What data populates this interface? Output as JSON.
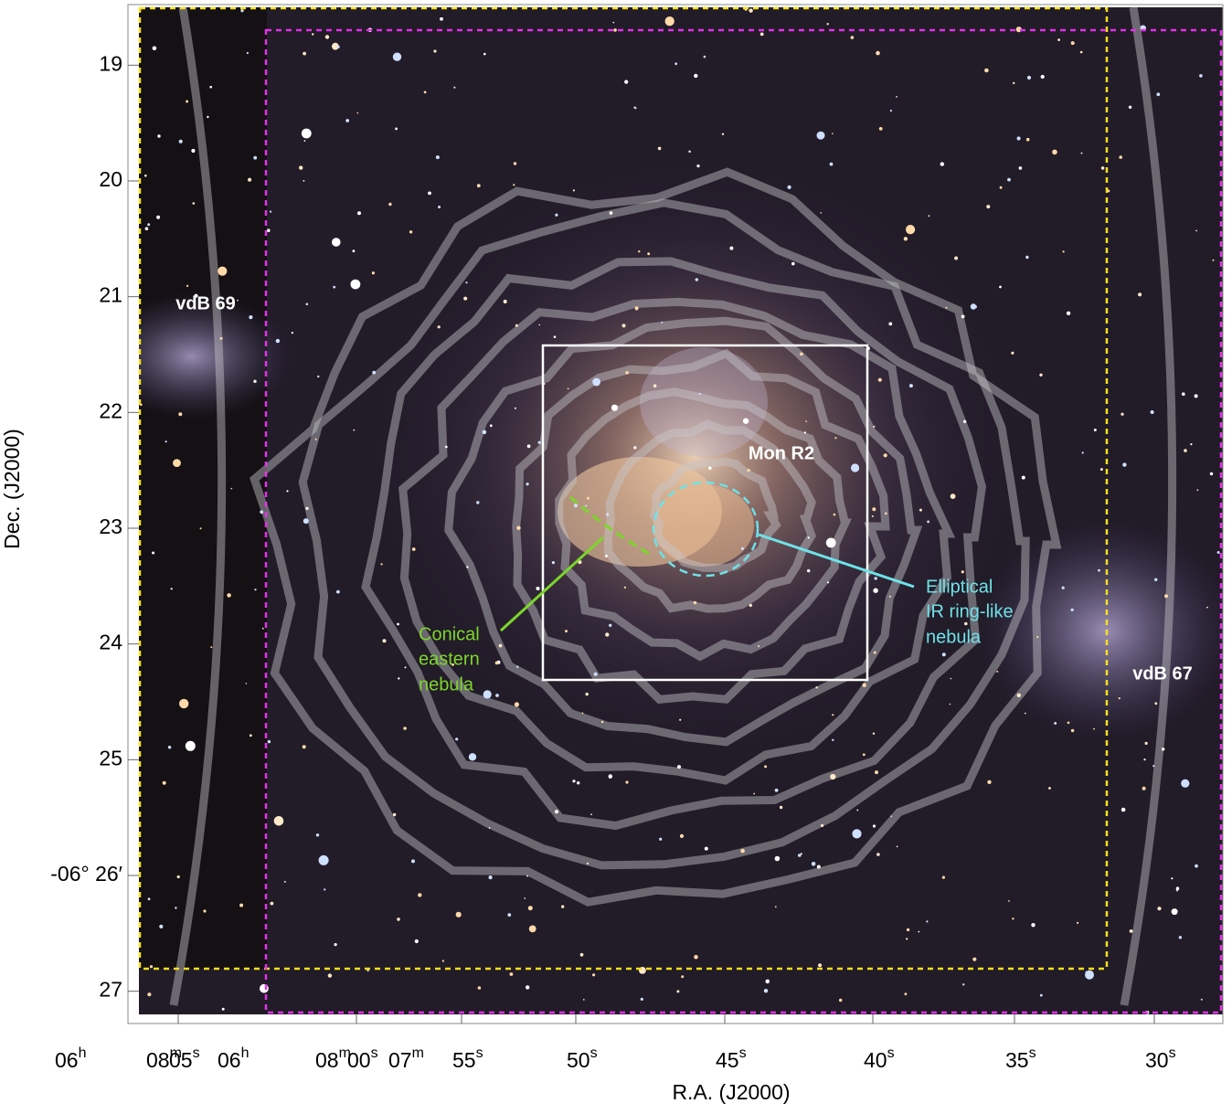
{
  "x_axis": {
    "title": "R.A. (J2000)",
    "ticks": [
      [
        {
          "text": "06",
          "sup": "h"
        },
        {
          "text": "08",
          "sup": "m"
        },
        {
          "text": "05",
          "sup": "s"
        }
      ],
      [
        {
          "text": "06",
          "sup": "h"
        },
        {
          "text": "08",
          "sup": "m"
        },
        {
          "text": "00",
          "sup": "s"
        }
      ],
      [
        {
          "text": "07",
          "sup": "m"
        },
        {
          "text": "55",
          "sup": "s"
        }
      ],
      [
        {
          "text": "50",
          "sup": "s"
        }
      ],
      [
        {
          "text": "45",
          "sup": "s"
        }
      ],
      [
        {
          "text": "40",
          "sup": "s"
        }
      ],
      [
        {
          "text": "35",
          "sup": "s"
        }
      ],
      [
        {
          "text": "30",
          "sup": "s"
        }
      ]
    ]
  },
  "y_axis": {
    "title": "Dec. (J2000)",
    "ylim": [
      18.5,
      27.2
    ],
    "yticks": [
      19,
      20,
      21,
      22,
      23,
      24,
      25,
      {
        "value": 26,
        "label": "-06° 26′"
      },
      27
    ]
  },
  "annotations": {
    "vdb69": "vdB 69",
    "monr2": "Mon R2",
    "vdb67": "vdB 67",
    "conical": [
      "Conical",
      "eastern",
      "nebula"
    ],
    "elliptical": [
      "Elliptical",
      "IR ring-like",
      "nebula"
    ]
  }
}
